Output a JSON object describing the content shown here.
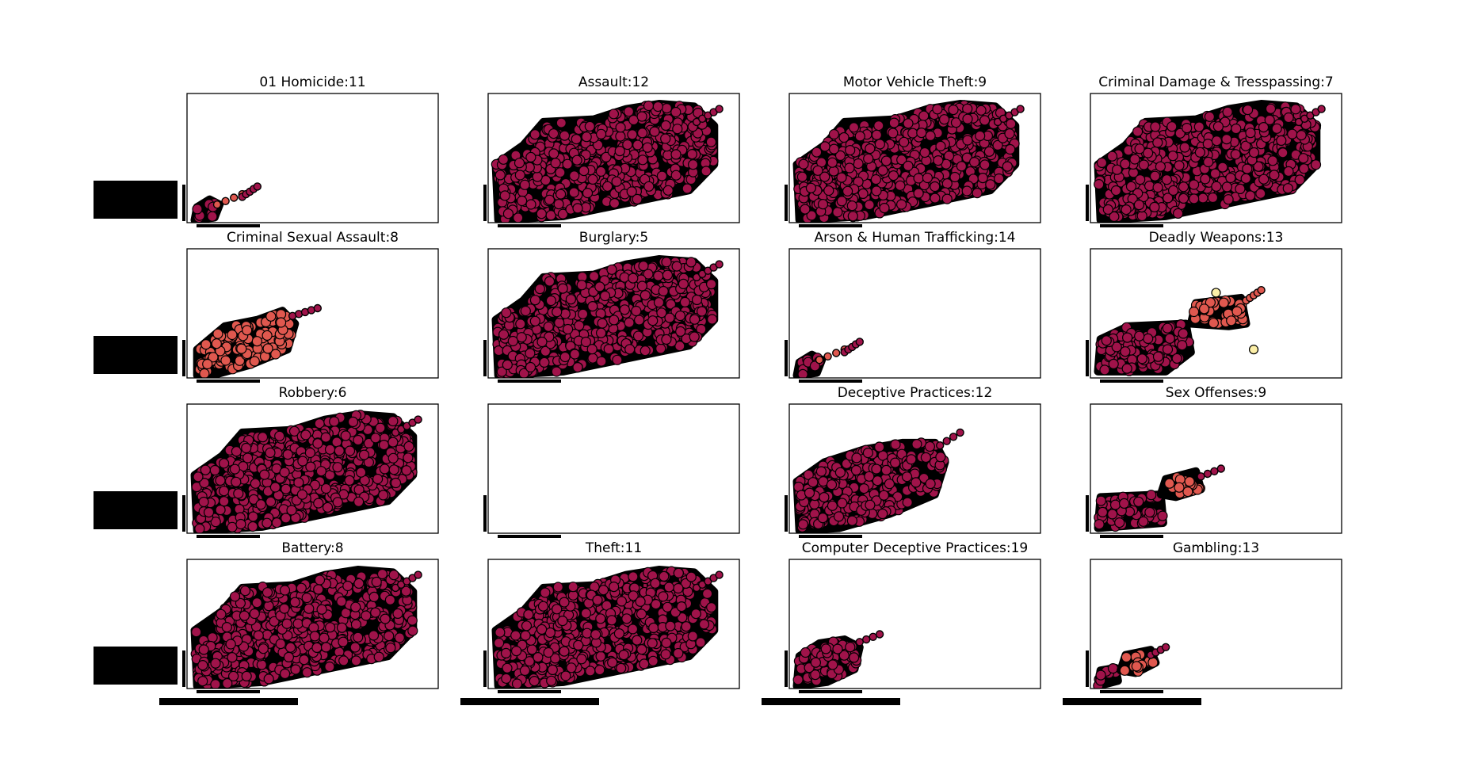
{
  "colors": {
    "dense": "#a0134a",
    "mid": "#e0584f",
    "light": "#fdf0a8",
    "edge": "#000000",
    "frame": "#000000",
    "background": "#ffffff"
  },
  "chart_data": [
    {
      "type": "scatter",
      "title": "01 Homicide:11",
      "fill": "small",
      "colors": [
        "mid",
        "dense"
      ],
      "tick_labels_visible": false
    },
    {
      "type": "scatter",
      "title": "Assault:12",
      "fill": "full",
      "colors": [
        "dense"
      ],
      "tick_labels_visible": false
    },
    {
      "type": "scatter",
      "title": "Motor Vehicle Theft:9",
      "fill": "full",
      "colors": [
        "dense"
      ],
      "tick_labels_visible": false
    },
    {
      "type": "scatter",
      "title": "Criminal Damage & Tresspassing:7",
      "fill": "full",
      "colors": [
        "dense"
      ],
      "tick_labels_visible": false
    },
    {
      "type": "scatter",
      "title": "Criminal Sexual Assault:8",
      "fill": "medium",
      "colors": [
        "mid"
      ],
      "tick_labels_visible": false
    },
    {
      "type": "scatter",
      "title": "Burglary:5",
      "fill": "full",
      "colors": [
        "dense"
      ],
      "tick_labels_visible": false
    },
    {
      "type": "scatter",
      "title": "Arson & Human Trafficking:14",
      "fill": "small",
      "colors": [
        "mid",
        "dense"
      ],
      "tick_labels_visible": false
    },
    {
      "type": "scatter",
      "title": "Deadly Weapons:13",
      "fill": "split",
      "colors": [
        "dense",
        "mid",
        "light"
      ],
      "tick_labels_visible": false
    },
    {
      "type": "scatter",
      "title": "Robbery:6",
      "fill": "full",
      "colors": [
        "dense"
      ],
      "tick_labels_visible": false
    },
    {
      "type": "scatter",
      "title": "",
      "fill": "empty",
      "colors": [],
      "tick_labels_visible": false
    },
    {
      "type": "scatter",
      "title": "Deceptive Practices:12",
      "fill": "large",
      "colors": [
        "dense"
      ],
      "tick_labels_visible": false
    },
    {
      "type": "scatter",
      "title": "Sex Offenses:9",
      "fill": "split-small",
      "colors": [
        "dense",
        "mid"
      ],
      "tick_labels_visible": false
    },
    {
      "type": "scatter",
      "title": "Battery:8",
      "fill": "full",
      "colors": [
        "dense"
      ],
      "tick_labels_visible": false
    },
    {
      "type": "scatter",
      "title": "Theft:11",
      "fill": "full",
      "colors": [
        "dense"
      ],
      "tick_labels_visible": false
    },
    {
      "type": "scatter",
      "title": "Computer Deceptive Practices:19",
      "fill": "small-medium",
      "colors": [
        "dense"
      ],
      "tick_labels_visible": false
    },
    {
      "type": "scatter",
      "title": "Gambling:13",
      "fill": "tiny",
      "colors": [
        "dense",
        "mid"
      ],
      "tick_labels_visible": false
    }
  ]
}
